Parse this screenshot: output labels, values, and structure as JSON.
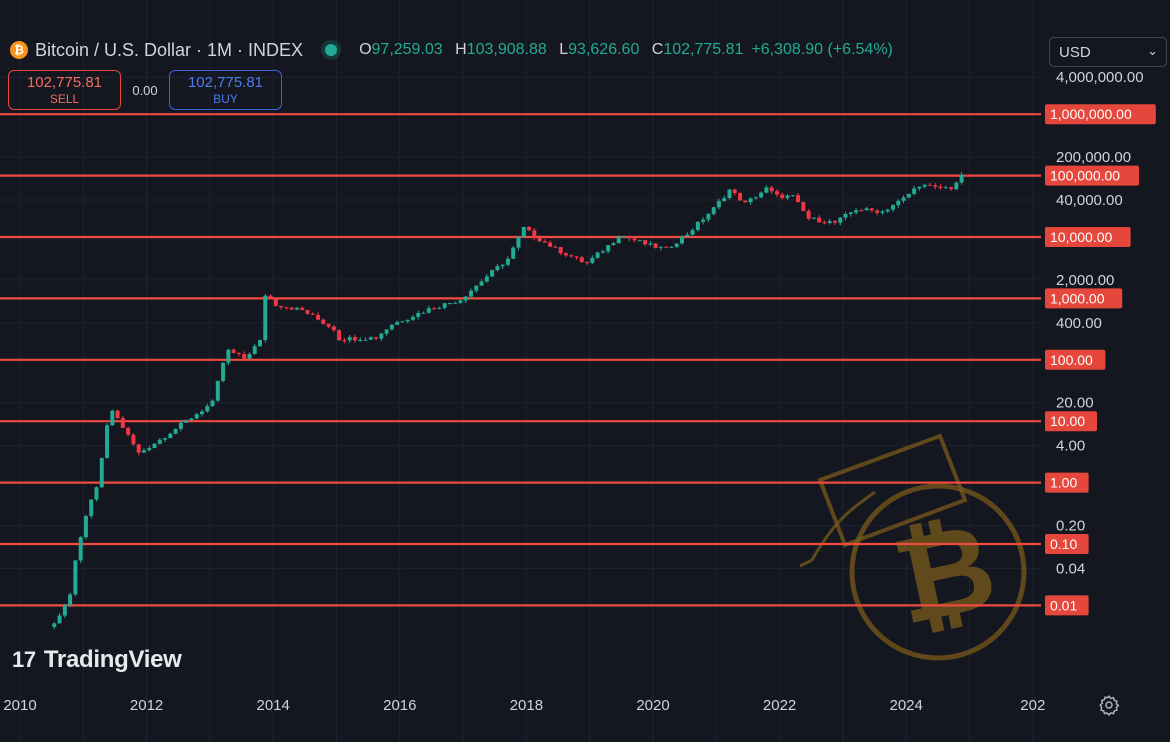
{
  "header": {
    "coin_glyph": "₿",
    "title": "Bitcoin / U.S. Dollar · 1M · INDEX",
    "open_label": "O",
    "open": "97,259.03",
    "high_label": "H",
    "high": "103,908.88",
    "low_label": "L",
    "low": "93,626.60",
    "close_label": "C",
    "close": "102,775.81",
    "change": "+6,308.90 (+6.54%)"
  },
  "trade": {
    "sell_price": "102,775.81",
    "sell_label": "SELL",
    "spread": "0.00",
    "buy_price": "102,775.81",
    "buy_label": "BUY"
  },
  "currency": {
    "selected": "USD"
  },
  "logo": {
    "mark": "17",
    "text": "TradingView"
  },
  "icons": {
    "settings": "gear-icon",
    "watermark": "bitcoin-graduation-cap-watermark"
  },
  "colors": {
    "up": "#22ab94",
    "down": "#f23645",
    "level_line": "#ef4b3f",
    "level_label_bg": "#e5473c",
    "background": "#141720",
    "watermark": "#7a5a1a"
  },
  "chart_data": {
    "type": "candlestick",
    "title": "Bitcoin / U.S. Dollar · 1M · INDEX",
    "scale": "log",
    "ylim": [
      0.003,
      6000000
    ],
    "xlim": [
      "2010-01",
      "2026-06"
    ],
    "grid": true,
    "x_ticks": [
      "2010",
      "2012",
      "2014",
      "2016",
      "2018",
      "2020",
      "2022",
      "2024",
      "202"
    ],
    "y_ticks": [
      {
        "value": 4000000,
        "label": "4,000,000.00"
      },
      {
        "value": 200000,
        "label": "200,000.00"
      },
      {
        "value": 40000,
        "label": "40,000.00"
      },
      {
        "value": 2000,
        "label": "2,000.00"
      },
      {
        "value": 400,
        "label": "400.00"
      },
      {
        "value": 20,
        "label": "20.00"
      },
      {
        "value": 4,
        "label": "4.00"
      },
      {
        "value": 0.2,
        "label": "0.20"
      },
      {
        "value": 0.04,
        "label": "0.04"
      }
    ],
    "levels": [
      {
        "value": 1000000,
        "label": "1,000,000.00"
      },
      {
        "value": 100000,
        "label": "100,000.00"
      },
      {
        "value": 10000,
        "label": "10,000.00"
      },
      {
        "value": 1000,
        "label": "1,000.00"
      },
      {
        "value": 100,
        "label": "100.00"
      },
      {
        "value": 10,
        "label": "10.00"
      },
      {
        "value": 1,
        "label": "1.00"
      },
      {
        "value": 0.1,
        "label": "0.10"
      },
      {
        "value": 0.01,
        "label": "0.01"
      }
    ],
    "price_path": [
      [
        "2010-07",
        0.005
      ],
      [
        "2010-10",
        0.015
      ],
      [
        "2010-11",
        0.05
      ],
      [
        "2011-01",
        0.3
      ],
      [
        "2011-03",
        0.8
      ],
      [
        "2011-05",
        8
      ],
      [
        "2011-06",
        15
      ],
      [
        "2011-08",
        8
      ],
      [
        "2011-11",
        3
      ],
      [
        "2012-03",
        5
      ],
      [
        "2012-08",
        10
      ],
      [
        "2013-01",
        20
      ],
      [
        "2013-03",
        90
      ],
      [
        "2013-04",
        140
      ],
      [
        "2013-07",
        105
      ],
      [
        "2013-10",
        200
      ],
      [
        "2013-11",
        1150
      ],
      [
        "2014-01",
        800
      ],
      [
        "2014-06",
        640
      ],
      [
        "2014-12",
        320
      ],
      [
        "2015-01",
        220
      ],
      [
        "2015-08",
        230
      ],
      [
        "2015-11",
        380
      ],
      [
        "2016-06",
        670
      ],
      [
        "2016-12",
        960
      ],
      [
        "2017-05",
        2300
      ],
      [
        "2017-09",
        4400
      ],
      [
        "2017-12",
        14000
      ],
      [
        "2018-02",
        10300
      ],
      [
        "2018-06",
        6400
      ],
      [
        "2018-11",
        4000
      ],
      [
        "2018-12",
        3750
      ],
      [
        "2019-05",
        8500
      ],
      [
        "2019-06",
        11000
      ],
      [
        "2019-12",
        7200
      ],
      [
        "2020-03",
        6400
      ],
      [
        "2020-07",
        11300
      ],
      [
        "2020-12",
        29000
      ],
      [
        "2021-03",
        58800
      ],
      [
        "2021-06",
        35000
      ],
      [
        "2021-10",
        61300
      ],
      [
        "2021-12",
        46300
      ],
      [
        "2022-03",
        45500
      ],
      [
        "2022-06",
        19900
      ],
      [
        "2022-11",
        17100
      ],
      [
        "2023-03",
        28400
      ],
      [
        "2023-08",
        26000
      ],
      [
        "2023-12",
        42300
      ],
      [
        "2024-03",
        71300
      ],
      [
        "2024-06",
        62700
      ],
      [
        "2024-09",
        63300
      ],
      [
        "2024-11",
        96400
      ],
      [
        "2024-12",
        102775.81
      ]
    ]
  }
}
